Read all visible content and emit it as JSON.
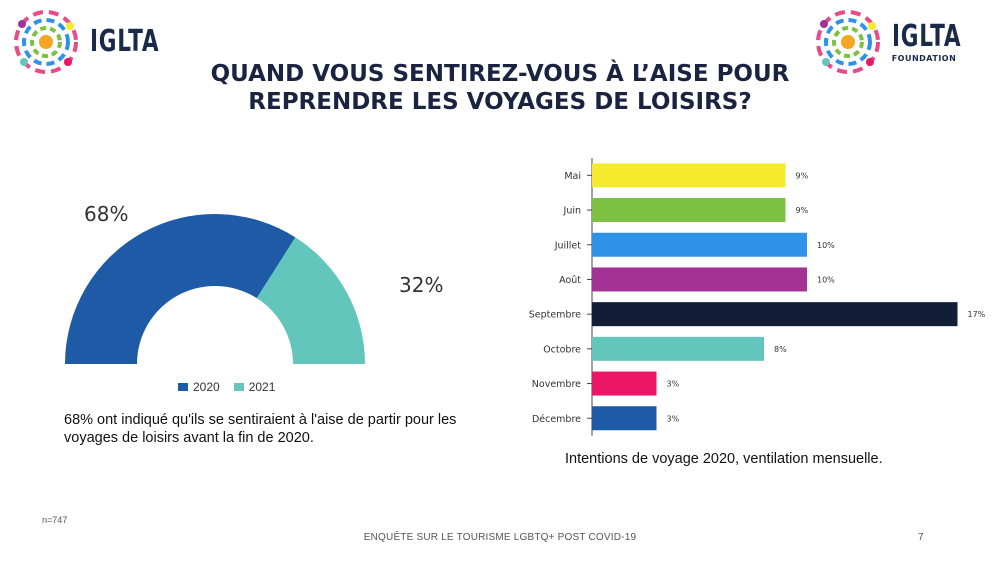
{
  "header": {
    "logo_left_text": "IGLTA",
    "logo_right_text": "IGLTA",
    "logo_right_sub": "FOUNDATION"
  },
  "title": {
    "line1": "QUAND VOUS SENTIREZ-VOUS À L’AISE POUR",
    "line2": "REPRENDRE LES VOYAGES DE LOISIRS?"
  },
  "chart_data": [
    {
      "type": "pie",
      "variant": "half-donut",
      "labels": [
        "2020",
        "2021"
      ],
      "values": [
        68,
        32
      ],
      "value_labels": [
        "68%",
        "32%"
      ],
      "colors": [
        "#1f5aa6",
        "#62c6bd"
      ],
      "legend_position": "bottom"
    },
    {
      "type": "bar",
      "orientation": "horizontal",
      "categories": [
        "Mai",
        "Juin",
        "Juillet",
        "Août",
        "Septembre",
        "Octobre",
        "Novembre",
        "Décembre"
      ],
      "values": [
        9,
        9,
        10,
        10,
        17,
        8,
        3,
        3
      ],
      "value_labels": [
        "9%",
        "9%",
        "10%",
        "10%",
        "17%",
        "8%",
        "3%",
        "3%"
      ],
      "colors": [
        "#f5ea2c",
        "#7cc142",
        "#2e93e8",
        "#a23293",
        "#121d38",
        "#62c6bd",
        "#ec1566",
        "#1f5aa6"
      ],
      "xlim": [
        0,
        17
      ]
    }
  ],
  "donut_caption": "68% ont indiqué qu'ils se sentiraient à l'aise de partir pour les voyages de loisirs avant la fin de 2020.",
  "bar_caption": "Intentions de voyage 2020, ventilation mensuelle.",
  "note": "n=747",
  "footer": {
    "text": "ENQUÊTE SUR LE TOURISME LGBTQ+ POST COVID-19",
    "page": "7"
  }
}
